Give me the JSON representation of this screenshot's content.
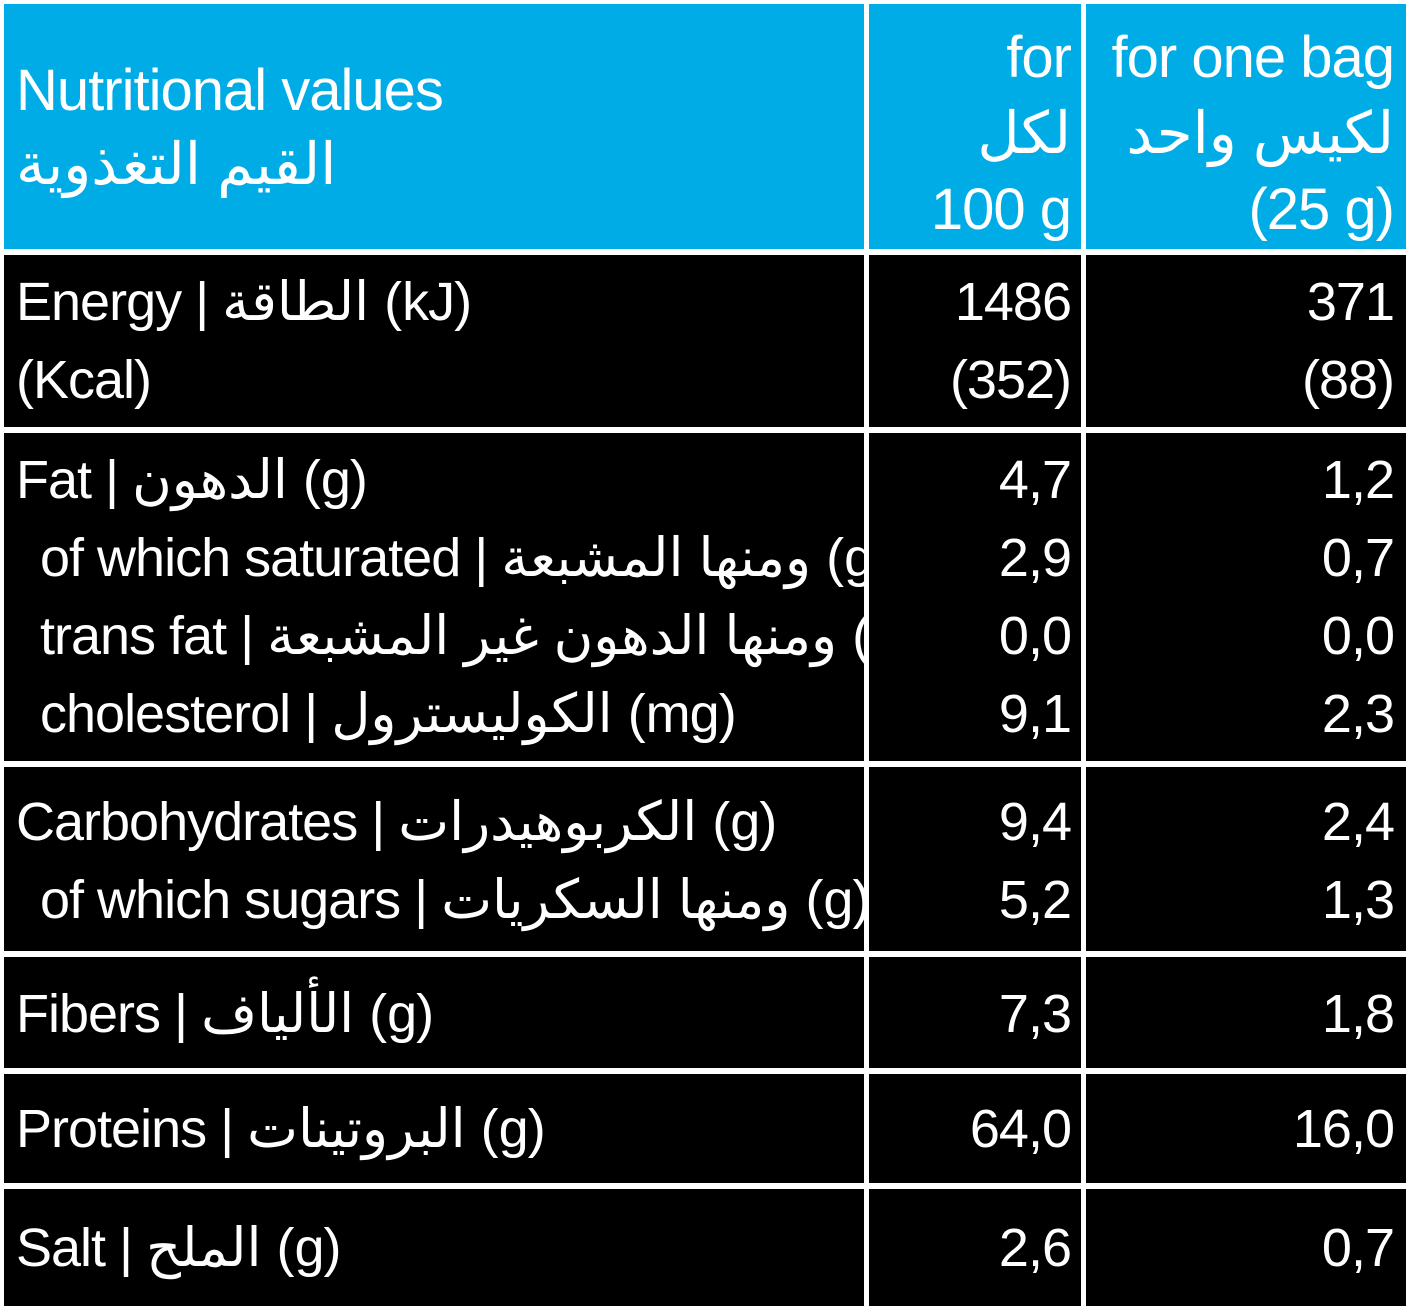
{
  "header": {
    "title_en": "Nutritional values",
    "title_ar": "القيم التغذوية",
    "col_100g": {
      "line1": "for",
      "line2": "لكل",
      "line3": "100 g"
    },
    "col_bag": {
      "line1": "for one bag",
      "line2": "لكيس واحد",
      "line3": "(25 g)"
    }
  },
  "sections": [
    {
      "rows": [
        {
          "en": "Energy | ",
          "ar": "الطاقة",
          "unit": " (kJ)",
          "per_100g": "1486",
          "per_bag": "371"
        },
        {
          "en": "(Kcal)",
          "ar": "",
          "unit": "",
          "per_100g": "(352)",
          "per_bag": "(88)"
        }
      ]
    },
    {
      "rows": [
        {
          "en": "Fat | ",
          "ar": "الدهون",
          "unit": " (g)",
          "per_100g": "4,7",
          "per_bag": "1,2"
        },
        {
          "en": "of which saturated | ",
          "ar": "ومنها المشبعة",
          "unit": " (g)",
          "per_100g": "2,9",
          "per_bag": "0,7"
        },
        {
          "en": "trans fat | ",
          "ar": "ومنها الدهون غير المشبعة",
          "unit": " (%)",
          "per_100g": "0,0",
          "per_bag": "0,0"
        },
        {
          "en": "cholesterol | ",
          "ar": "الكوليسترول",
          "unit": " (mg)",
          "per_100g": "9,1",
          "per_bag": "2,3"
        }
      ]
    },
    {
      "rows": [
        {
          "en": "Carbohydrates | ",
          "ar": "الكربوهيدرات",
          "unit": " (g)",
          "per_100g": "9,4",
          "per_bag": "2,4"
        },
        {
          "en": "of which sugars | ",
          "ar": "ومنها السكريات",
          "unit": " (g)",
          "per_100g": "5,2",
          "per_bag": "1,3"
        }
      ]
    },
    {
      "rows": [
        {
          "en": "Fibers | ",
          "ar": "الألياف",
          "unit": " (g)",
          "per_100g": "7,3",
          "per_bag": "1,8"
        }
      ]
    },
    {
      "rows": [
        {
          "en": "Proteins | ",
          "ar": "البروتينات",
          "unit": " (g)",
          "per_100g": "64,0",
          "per_bag": "16,0"
        }
      ]
    },
    {
      "rows": [
        {
          "en": "Salt | ",
          "ar": "الملح",
          "unit": " (g)",
          "per_100g": "2,6",
          "per_bag": "0,7"
        }
      ]
    }
  ],
  "colors": {
    "header_bg": "#00ace6",
    "body_bg": "#000000",
    "text": "#ffffff",
    "grid": "#ffffff"
  }
}
